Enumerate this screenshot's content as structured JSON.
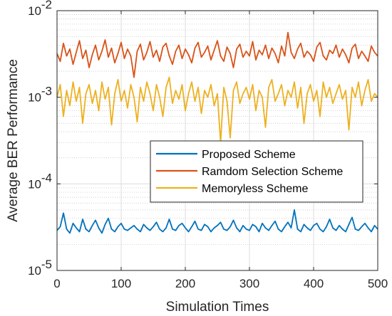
{
  "chart_data": {
    "type": "line",
    "title": "",
    "xlabel": "Simulation Times",
    "ylabel": "Average BER Performance",
    "xlim": [
      0,
      500
    ],
    "ylim": [
      1e-05,
      0.01
    ],
    "yscale": "log",
    "grid": true,
    "minor_grid_y": true,
    "legend_position": "center-right",
    "x_ticks": [
      0,
      100,
      200,
      300,
      400,
      500
    ],
    "x_tick_labels": [
      "0",
      "100",
      "200",
      "300",
      "400",
      "500"
    ],
    "y_ticks": [
      1e-05,
      0.0001,
      0.001,
      0.01
    ],
    "y_tick_labels": [
      {
        "base": "10",
        "exp": "-5"
      },
      {
        "base": "10",
        "exp": "-4"
      },
      {
        "base": "10",
        "exp": "-3"
      },
      {
        "base": "10",
        "exp": "-2"
      }
    ],
    "x": {
      "start": 0,
      "end": 500,
      "step": 5
    },
    "series": [
      {
        "name": "Proposed Scheme",
        "color": "#0072BD",
        "values": [
          2.9e-05,
          3.2e-05,
          4.6e-05,
          3e-05,
          2.7e-05,
          3.5e-05,
          3.1e-05,
          2.8e-05,
          3.9e-05,
          3e-05,
          2.8e-05,
          3.3e-05,
          3.8e-05,
          3.1e-05,
          2.7e-05,
          3.4e-05,
          4e-05,
          3e-05,
          2.8e-05,
          3.2e-05,
          3.5e-05,
          3e-05,
          2.9e-05,
          3.1e-05,
          3.3e-05,
          3e-05,
          2.8e-05,
          3.4e-05,
          3.1e-05,
          2.9e-05,
          3.2e-05,
          3.6e-05,
          3e-05,
          2.8e-05,
          3.1e-05,
          3.9e-05,
          3e-05,
          2.9e-05,
          3.3e-05,
          3.5e-05,
          3.1e-05,
          2.8e-05,
          3.2e-05,
          3.7e-05,
          3e-05,
          2.9e-05,
          3.4e-05,
          3.2e-05,
          2.8e-05,
          3.1e-05,
          3.3e-05,
          3.6e-05,
          3e-05,
          2.9e-05,
          3.2e-05,
          3.8e-05,
          3.1e-05,
          2.8e-05,
          3.3e-05,
          3e-05,
          2.9e-05,
          3.4e-05,
          3.2e-05,
          2.8e-05,
          3.5e-05,
          3.1e-05,
          2.9e-05,
          3.3e-05,
          3.7e-05,
          3e-05,
          2.8e-05,
          3.2e-05,
          3.6e-05,
          3.1e-05,
          5e-05,
          3e-05,
          2.8e-05,
          3.4e-05,
          3.1e-05,
          2.9e-05,
          3.3e-05,
          3.5e-05,
          3e-05,
          2.8e-05,
          3.2e-05,
          3.9e-05,
          3.1e-05,
          2.9e-05,
          3.3e-05,
          3e-05,
          2.8e-05,
          3.4e-05,
          4.1e-05,
          3e-05,
          2.9e-05,
          3.2e-05,
          3.5e-05,
          3.1e-05,
          2.8e-05,
          3.3e-05,
          3e-05
        ]
      },
      {
        "name": "Ramdom Selection Scheme",
        "color": "#D95319",
        "values": [
          0.0032,
          0.0026,
          0.0042,
          0.003,
          0.0036,
          0.0024,
          0.0033,
          0.0045,
          0.0028,
          0.0035,
          0.0022,
          0.0031,
          0.004,
          0.0027,
          0.0034,
          0.0046,
          0.0029,
          0.0037,
          0.0025,
          0.0032,
          0.0043,
          0.0028,
          0.0036,
          0.003,
          0.0017,
          0.0034,
          0.0041,
          0.0027,
          0.0033,
          0.0044,
          0.0029,
          0.0035,
          0.0026,
          0.0038,
          0.0042,
          0.003,
          0.0024,
          0.0034,
          0.004,
          0.0028,
          0.0036,
          0.0031,
          0.0025,
          0.0037,
          0.0043,
          0.0029,
          0.0033,
          0.0039,
          0.0027,
          0.0035,
          0.0045,
          0.003,
          0.0026,
          0.0038,
          0.0032,
          0.0022,
          0.0036,
          0.0041,
          0.0029,
          0.0034,
          0.003,
          0.0044,
          0.0027,
          0.0035,
          0.0031,
          0.004,
          0.0028,
          0.0037,
          0.0032,
          0.0025,
          0.0039,
          0.003,
          0.0056,
          0.0033,
          0.0028,
          0.0036,
          0.0042,
          0.0029,
          0.0034,
          0.0031,
          0.0026,
          0.0038,
          0.0043,
          0.003,
          0.0027,
          0.0035,
          0.0032,
          0.004,
          0.0029,
          0.0036,
          0.0031,
          0.0025,
          0.0037,
          0.0041,
          0.0028,
          0.0034,
          0.003,
          0.0026,
          0.0039,
          0.0033,
          0.003
        ]
      },
      {
        "name": "Memoryless Scheme",
        "color": "#EDB120",
        "values": [
          0.001,
          0.0014,
          0.0006,
          0.0012,
          0.0008,
          0.0015,
          0.0009,
          0.0013,
          0.0005,
          0.0011,
          0.0014,
          0.00085,
          0.0012,
          0.0007,
          0.0015,
          0.00095,
          0.0013,
          0.00048,
          0.0011,
          0.0016,
          0.0009,
          0.0012,
          0.00075,
          0.0014,
          0.001,
          0.00052,
          0.0013,
          0.0009,
          0.0015,
          0.0011,
          0.0007,
          0.0014,
          0.001,
          0.0006,
          0.0013,
          0.0017,
          0.00085,
          0.0012,
          0.00095,
          0.0014,
          0.0007,
          0.0011,
          0.0015,
          0.0009,
          0.0013,
          0.00065,
          0.0012,
          0.001,
          0.0014,
          0.0008,
          0.0011,
          0.0003,
          0.0013,
          0.0009,
          0.00034,
          0.0012,
          0.0015,
          0.00085,
          0.0011,
          0.0013,
          0.00095,
          0.0014,
          0.0007,
          0.0012,
          0.001,
          0.00045,
          0.0013,
          0.0016,
          0.0009,
          0.0011,
          0.0014,
          0.0008,
          0.0012,
          0.001,
          0.0015,
          0.00075,
          0.0013,
          0.0005,
          0.0011,
          0.0014,
          0.0009,
          0.0012,
          0.0006,
          0.0015,
          0.001,
          0.0013,
          0.00085,
          0.0011,
          0.0014,
          0.00095,
          0.0012,
          0.00042,
          0.0013,
          0.001,
          0.0015,
          0.0008,
          0.0012,
          0.0016,
          0.0009,
          0.0011,
          0.001
        ]
      }
    ]
  }
}
